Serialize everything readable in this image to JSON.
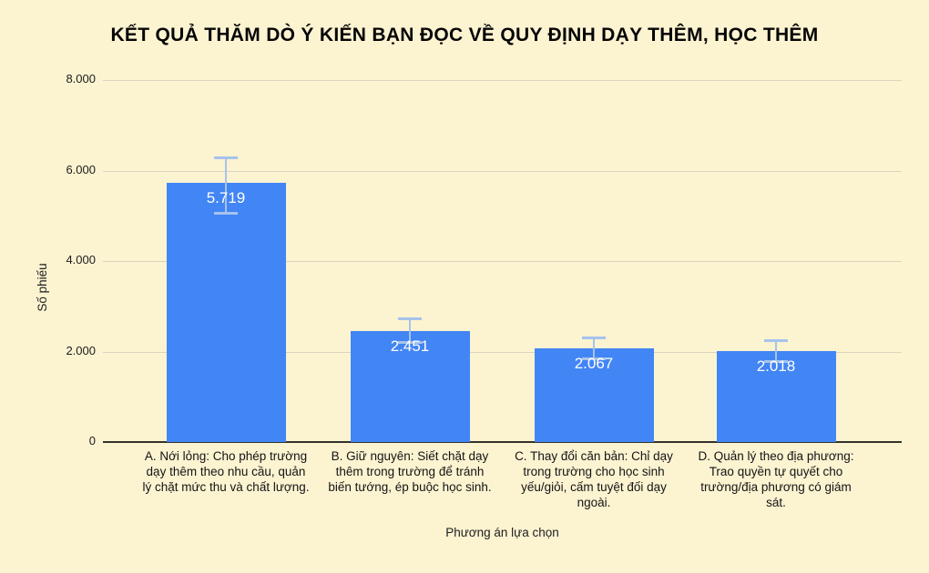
{
  "page": {
    "background_color": "#FCF3D1"
  },
  "chart_data": {
    "type": "bar",
    "title": "KẾT QUẢ THĂM DÒ Ý KIẾN BẠN ĐỌC VỀ QUY ĐỊNH DẠY THÊM, HỌC THÊM",
    "xlabel": "Phương án lựa chọn",
    "ylabel": "Số phiếu",
    "ylim": [
      0,
      8000
    ],
    "grid": true,
    "legend": "none",
    "colors": {
      "bar": "#4285F4",
      "error_bar": "#A6C3EC",
      "gridline": "#D8D4C2",
      "axis_line": "#33332B",
      "value_label": "#FFFFFF",
      "text": "#1C1C1C"
    },
    "yticks": [
      {
        "value": 8000,
        "label": "8.000"
      },
      {
        "value": 6000,
        "label": "6.000"
      },
      {
        "value": 4000,
        "label": "4.000"
      },
      {
        "value": 2000,
        "label": "2.000"
      },
      {
        "value": 0,
        "label": "0"
      }
    ],
    "bars": [
      {
        "category": "A. Nới lỏng: Cho phép trường\ndạy thêm theo nhu cầu, quản\nlý chặt mức thu và chất lượng.",
        "value": 5719,
        "value_label": "5.719",
        "error_high": 6300,
        "error_low": 5050
      },
      {
        "category": "B. Giữ nguyên: Siết chặt dạy\nthêm trong trường để tránh\nbiến tướng, ép buộc học sinh.",
        "value": 2451,
        "value_label": "2.451",
        "error_high": 2730,
        "error_low": 2190
      },
      {
        "category": "C. Thay đổi căn bản: Chỉ dạy\ntrong trường cho học sinh\nyếu/giỏi, cấm tuyệt đối dạy\nngoài.",
        "value": 2067,
        "value_label": "2.067",
        "error_high": 2310,
        "error_low": 1830
      },
      {
        "category": "D. Quản lý theo địa phương:\nTrao quyền tự quyết cho\ntrường/địa phương có giám\nsát.",
        "value": 2018,
        "value_label": "2.018",
        "error_high": 2250,
        "error_low": 1770
      }
    ]
  }
}
